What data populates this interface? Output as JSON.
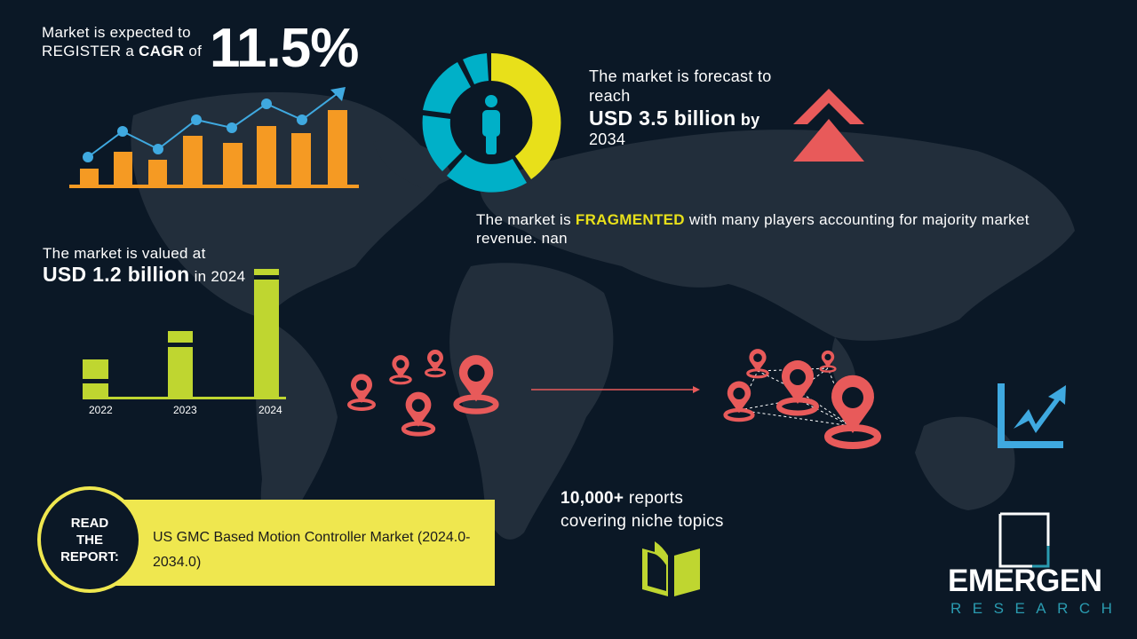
{
  "cagr": {
    "line1": "Market is expected to",
    "line2_prefix": "REGISTER a",
    "line2_bold": "CAGR",
    "line2_suffix": "of",
    "value": "11.5%"
  },
  "forecast": {
    "line1": "The market is forecast to",
    "line2": "reach",
    "value": "USD 3.5 billion",
    "by": "by",
    "year": "2034"
  },
  "fragmented": {
    "prefix": "The market is",
    "highlight": "FRAGMENTED",
    "suffix": "with many players accounting for majority market",
    "line2": "revenue. nan"
  },
  "valued": {
    "line1": "The market is valued at",
    "value": "USD 1.2 billion",
    "suffix": "in 2024"
  },
  "years": [
    "2022",
    "2023",
    "2024"
  ],
  "report": {
    "label_lines": [
      "READ",
      "THE",
      "REPORT:"
    ],
    "title": "US GMC Based Motion Controller Market (2024.0-2034.0)"
  },
  "reports_count": {
    "line1_bold": "10,000+",
    "line1_rest": "reports",
    "line2": "covering niche topics"
  },
  "logo": {
    "name": "EMERGEN",
    "sub": "RESEARCH"
  },
  "colors": {
    "background": "#0b1826",
    "map": "#222e3b",
    "orange": "#f59a23",
    "blue": "#3fa9e0",
    "yellow": "#e8e01a",
    "teal": "#00b0c8",
    "red": "#e85a5a",
    "lime": "#bfd630",
    "report_band": "#efe74f"
  }
}
